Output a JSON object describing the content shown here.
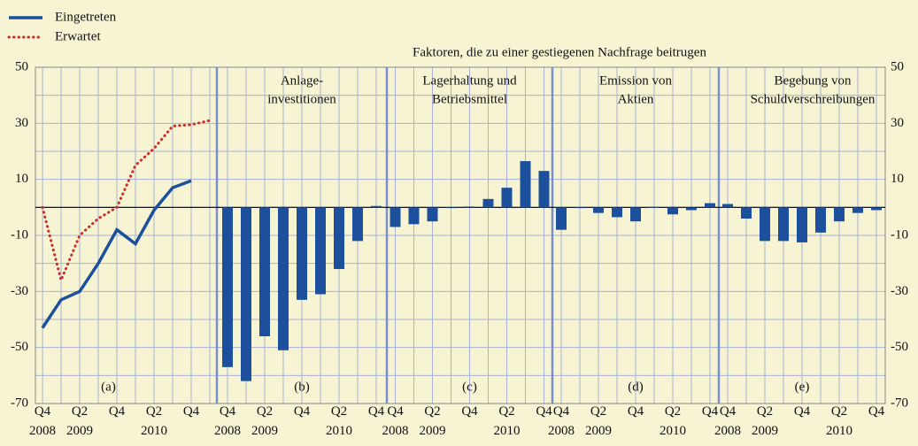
{
  "header": {
    "title": "Faktoren, die zu einer gestiegenen Nachfrage beitrugen"
  },
  "axes": {
    "ylim": [
      -70,
      50
    ],
    "yticks": [
      -70,
      -50,
      -30,
      -10,
      10,
      30,
      50
    ],
    "grid": true
  },
  "chart_data": [
    {
      "type": "line",
      "label": "(a)",
      "categories": [
        "Q4 2008",
        null,
        "Q2 2009",
        null,
        "Q4",
        null,
        "Q2 2010",
        null,
        "Q4",
        null
      ],
      "series": [
        {
          "name": "Eingetreten",
          "color": "#1c4f9c",
          "style": "solid",
          "values": [
            -43,
            -33,
            -30,
            -20,
            -8,
            -13,
            -1,
            7,
            9.5,
            null
          ]
        },
        {
          "name": "Erwartet",
          "color": "#c9302c",
          "style": "dotted",
          "values": [
            0,
            -26,
            -10,
            -4,
            0,
            15,
            21,
            29,
            29.5,
            31
          ]
        }
      ]
    },
    {
      "type": "bar",
      "label": "(b)",
      "title": [
        "Anlage-",
        "investitionen"
      ],
      "color": "#1c4f9c",
      "categories": [
        "Q4 2008",
        null,
        "Q2 2009",
        null,
        "Q4",
        null,
        "Q2 2010",
        null,
        "Q4"
      ],
      "values": [
        -57,
        -62,
        -46,
        -51,
        -33,
        -31,
        -22,
        -12,
        0.5
      ]
    },
    {
      "type": "bar",
      "label": "(c)",
      "title": [
        "Lagerhaltung und",
        "Betriebsmittel"
      ],
      "color": "#1c4f9c",
      "categories": [
        "Q4 2008",
        null,
        "Q2 2009",
        null,
        "Q4",
        null,
        "Q2 2010",
        null,
        "Q4"
      ],
      "values": [
        -7,
        -6,
        -5,
        0,
        0.3,
        3,
        7,
        16.5,
        13
      ]
    },
    {
      "type": "bar",
      "label": "(d)",
      "title": [
        "Emission von",
        "Aktien"
      ],
      "color": "#1c4f9c",
      "categories": [
        "Q4 2008",
        null,
        "Q2 2009",
        null,
        "Q4",
        null,
        "Q2 2010",
        null,
        "Q4"
      ],
      "values": [
        -8,
        0,
        -2,
        -3.5,
        -5,
        0.2,
        -2.5,
        -1,
        1.5
      ]
    },
    {
      "type": "bar",
      "label": "(e)",
      "title": [
        "Begebung von",
        "Schuldverschreibungen"
      ],
      "color": "#1c4f9c",
      "categories": [
        "Q4 2008",
        null,
        "Q2 2009",
        null,
        "Q4",
        null,
        "Q2 2010",
        null,
        "Q4"
      ],
      "values": [
        1.2,
        -4,
        -12,
        -12,
        -12.5,
        -9,
        -5,
        -2,
        -1
      ]
    }
  ]
}
